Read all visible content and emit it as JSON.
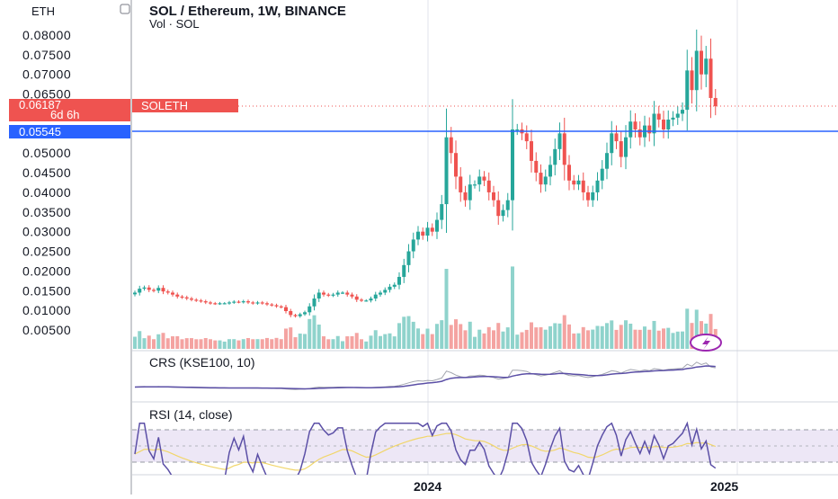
{
  "header": {
    "currency": "ETH",
    "symbol_title": "SOL / Ethereum, 1W, BINANCE",
    "volume_label": "Vol · SOL"
  },
  "price_tags": {
    "last_price": "0.06187",
    "countdown": "6d 6h",
    "symbol_tag": "SOLETH",
    "hline_price": "0.05545"
  },
  "indicators": {
    "crs_title": "CRS (KSE100, 10)",
    "rsi_title": "RSI (14, close)"
  },
  "colors": {
    "up": "#26a69a",
    "down": "#ef5350",
    "vol_up": "#8fd3cc",
    "vol_down": "#f4a3a1",
    "hline": "#2962ff",
    "indicator_line": "#5b4fa6",
    "rsi_ma": "#f1d66b",
    "rsi_band": "#ede7f6",
    "grid": "#e0e3eb"
  },
  "chart_data": [
    {
      "type": "candlestick",
      "title": "SOL / Ethereum, 1W, BINANCE",
      "unit": "ETH",
      "y_ticks": [
        "0.08000",
        "0.07500",
        "0.07000",
        "0.06500",
        "0.05000",
        "0.04500",
        "0.04000",
        "0.03500",
        "0.03000",
        "0.02500",
        "0.02000",
        "0.01500",
        "0.01000",
        "0.00500"
      ],
      "ylim": [
        0,
        0.082
      ],
      "x_ticks": [
        "2024",
        "2025"
      ],
      "close": [
        0.0145,
        0.0155,
        0.0158,
        0.0152,
        0.015,
        0.0157,
        0.0148,
        0.0145,
        0.014,
        0.0135,
        0.0133,
        0.013,
        0.0127,
        0.0125,
        0.0123,
        0.012,
        0.0118,
        0.0117,
        0.0118,
        0.0118,
        0.012,
        0.0122,
        0.0121,
        0.0123,
        0.012,
        0.0118,
        0.012,
        0.0118,
        0.0115,
        0.0113,
        0.011,
        0.0108,
        0.0098,
        0.0088,
        0.0085,
        0.009,
        0.0095,
        0.011,
        0.013,
        0.0145,
        0.014,
        0.0138,
        0.014,
        0.0145,
        0.0145,
        0.014,
        0.0135,
        0.0127,
        0.0125,
        0.0125,
        0.013,
        0.014,
        0.0145,
        0.0152,
        0.016,
        0.0165,
        0.0185,
        0.0215,
        0.025,
        0.028,
        0.03,
        0.029,
        0.031,
        0.03,
        0.033,
        0.037,
        0.054,
        0.05,
        0.044,
        0.04,
        0.038,
        0.042,
        0.042,
        0.044,
        0.043,
        0.04,
        0.038,
        0.034,
        0.0355,
        0.038,
        0.056,
        0.056,
        0.055,
        0.053,
        0.048,
        0.045,
        0.042,
        0.044,
        0.047,
        0.051,
        0.055,
        0.047,
        0.043,
        0.042,
        0.043,
        0.04,
        0.038,
        0.04,
        0.043,
        0.046,
        0.05,
        0.055,
        0.053,
        0.049,
        0.054,
        0.058,
        0.056,
        0.054,
        0.057,
        0.055,
        0.06,
        0.0585,
        0.056,
        0.0585,
        0.059,
        0.06,
        0.061,
        0.071,
        0.066,
        0.076,
        0.07,
        0.074,
        0.064,
        0.0619
      ],
      "rsi_ylim": [
        0,
        100
      ],
      "rsi_band": [
        30,
        70
      ]
    }
  ]
}
